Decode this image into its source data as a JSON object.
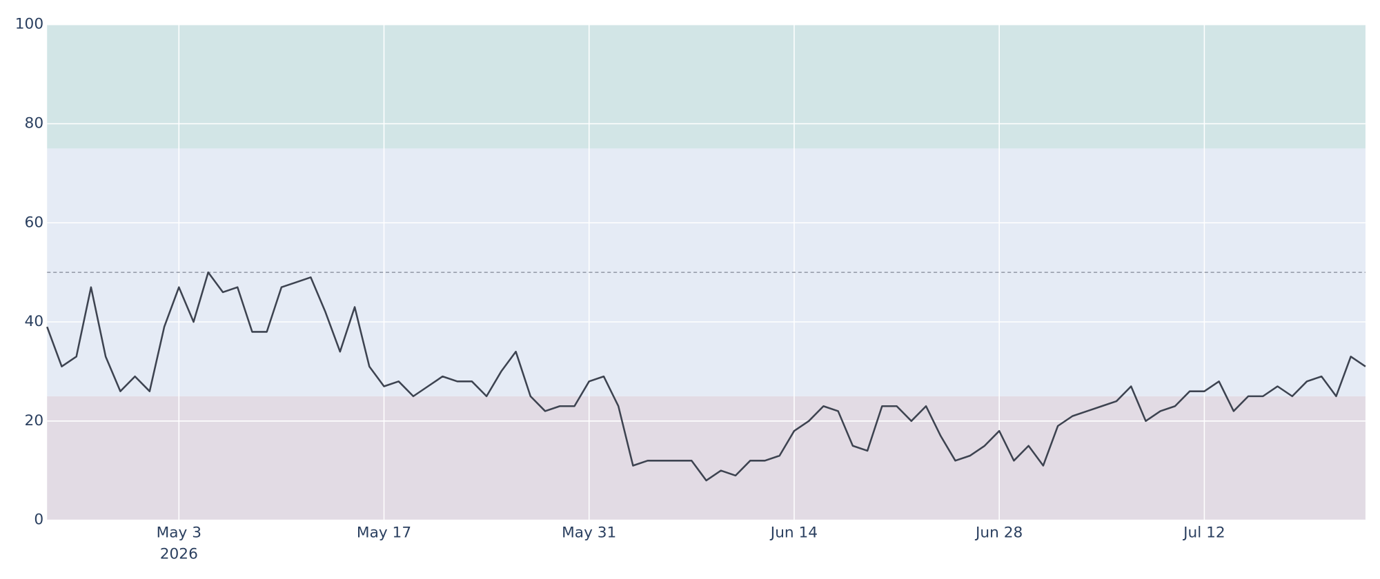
{
  "chart_data": {
    "type": "line",
    "x": [
      "2026-04-24",
      "2026-04-25",
      "2026-04-26",
      "2026-04-27",
      "2026-04-28",
      "2026-04-29",
      "2026-04-30",
      "2026-05-01",
      "2026-05-02",
      "2026-05-03",
      "2026-05-04",
      "2026-05-05",
      "2026-05-06",
      "2026-05-07",
      "2026-05-08",
      "2026-05-09",
      "2026-05-10",
      "2026-05-11",
      "2026-05-12",
      "2026-05-13",
      "2026-05-14",
      "2026-05-15",
      "2026-05-16",
      "2026-05-17",
      "2026-05-18",
      "2026-05-19",
      "2026-05-20",
      "2026-05-21",
      "2026-05-22",
      "2026-05-23",
      "2026-05-24",
      "2026-05-25",
      "2026-05-26",
      "2026-05-27",
      "2026-05-28",
      "2026-05-29",
      "2026-05-30",
      "2026-05-31",
      "2026-06-01",
      "2026-06-02",
      "2026-06-03",
      "2026-06-04",
      "2026-06-05",
      "2026-06-06",
      "2026-06-07",
      "2026-06-08",
      "2026-06-09",
      "2026-06-10",
      "2026-06-11",
      "2026-06-12",
      "2026-06-13",
      "2026-06-14",
      "2026-06-15",
      "2026-06-16",
      "2026-06-17",
      "2026-06-18",
      "2026-06-19",
      "2026-06-20",
      "2026-06-21",
      "2026-06-22",
      "2026-06-23",
      "2026-06-24",
      "2026-06-25",
      "2026-06-26",
      "2026-06-27",
      "2026-06-28",
      "2026-06-29",
      "2026-06-30",
      "2026-07-01",
      "2026-07-02",
      "2026-07-03",
      "2026-07-04",
      "2026-07-05",
      "2026-07-06",
      "2026-07-07",
      "2026-07-08",
      "2026-07-09",
      "2026-07-10",
      "2026-07-11",
      "2026-07-12",
      "2026-07-13",
      "2026-07-14",
      "2026-07-15",
      "2026-07-16",
      "2026-07-17",
      "2026-07-18",
      "2026-07-19",
      "2026-07-20",
      "2026-07-21",
      "2026-07-22",
      "2026-07-23"
    ],
    "series": [
      {
        "color": "#3d4350",
        "values": [
          39,
          31,
          33,
          47,
          33,
          26,
          29,
          26,
          39,
          47,
          40,
          50,
          46,
          47,
          38,
          38,
          47,
          48,
          49,
          42,
          34,
          43,
          31,
          27,
          28,
          25,
          27,
          29,
          28,
          28,
          25,
          30,
          34,
          25,
          22,
          23,
          23,
          28,
          29,
          23,
          11,
          12,
          12,
          12,
          12,
          8,
          10,
          9,
          12,
          12,
          13,
          18,
          20,
          23,
          22,
          15,
          14,
          23,
          23,
          20,
          23,
          17,
          12,
          13,
          15,
          18,
          12,
          15,
          11,
          19,
          21,
          22,
          23,
          24,
          27,
          20,
          22,
          23,
          26,
          26,
          28,
          22,
          25,
          25,
          27,
          25,
          28,
          29,
          25,
          33,
          31
        ]
      }
    ],
    "xlim": [
      "2026-04-24",
      "2026-07-23"
    ],
    "xticks": [
      {
        "value": "2026-05-03",
        "label": "May 3",
        "year": "2026"
      },
      {
        "value": "2026-05-17",
        "label": "May 17"
      },
      {
        "value": "2026-05-31",
        "label": "May 31"
      },
      {
        "value": "2026-06-14",
        "label": "Jun 14"
      },
      {
        "value": "2026-06-28",
        "label": "Jun 28"
      },
      {
        "value": "2026-07-12",
        "label": "Jul 12"
      }
    ],
    "ylim": [
      0,
      100
    ],
    "yticks": [
      0,
      20,
      40,
      60,
      80,
      100
    ],
    "grid": true,
    "bands": [
      {
        "from": 0,
        "to": 25,
        "color": "#e2dbe4"
      },
      {
        "from": 25,
        "to": 75,
        "color": "#e5ebf5"
      },
      {
        "from": 75,
        "to": 100,
        "color": "#d2e5e6"
      }
    ],
    "reference_line": 50
  }
}
